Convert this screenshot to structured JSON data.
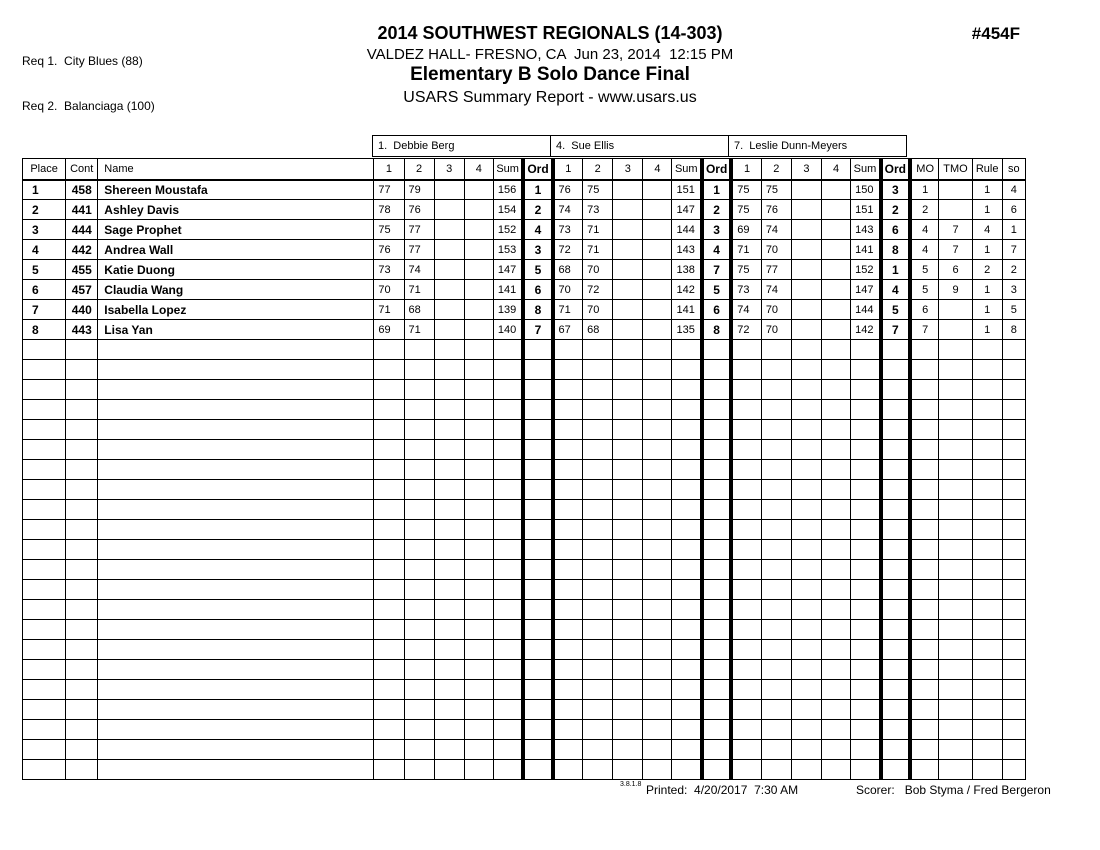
{
  "header": {
    "req1": "Req 1.  City Blues (88)",
    "req2": "Req 2.  Balanciaga (100)",
    "title": "2014 SOUTHWEST REGIONALS (14-303)",
    "venue": "VALDEZ HALL- FRESNO, CA  Jun 23, 2014  12:15 PM",
    "division": "Elementary B Solo Dance Final",
    "report_type": "USARS Summary Report - www.usars.us",
    "event_number": "#454F"
  },
  "table": {
    "left_headers": [
      "Place",
      "Cont",
      "Name"
    ],
    "judges": [
      {
        "name": "1.  Debbie Berg"
      },
      {
        "name": "4.  Sue Ellis"
      },
      {
        "name": "7.  Leslie Dunn-Meyers"
      }
    ],
    "judge_subheaders": [
      "1",
      "2",
      "3",
      "4",
      "Sum",
      "Ord"
    ],
    "right_headers": [
      "MO",
      "TMO",
      "Rule",
      "so"
    ],
    "rows": [
      {
        "place": "1",
        "cont": "458",
        "name": "Shereen Moustafa",
        "judges": [
          {
            "s1": "77",
            "s2": "79",
            "s3": "",
            "s4": "",
            "sum": "156",
            "ord": "1"
          },
          {
            "s1": "76",
            "s2": "75",
            "s3": "",
            "s4": "",
            "sum": "151",
            "ord": "1"
          },
          {
            "s1": "75",
            "s2": "75",
            "s3": "",
            "s4": "",
            "sum": "150",
            "ord": "3"
          }
        ],
        "mo": "1",
        "tmo": "",
        "rule": "1",
        "so": "4"
      },
      {
        "place": "2",
        "cont": "441",
        "name": "Ashley Davis",
        "judges": [
          {
            "s1": "78",
            "s2": "76",
            "s3": "",
            "s4": "",
            "sum": "154",
            "ord": "2"
          },
          {
            "s1": "74",
            "s2": "73",
            "s3": "",
            "s4": "",
            "sum": "147",
            "ord": "2"
          },
          {
            "s1": "75",
            "s2": "76",
            "s3": "",
            "s4": "",
            "sum": "151",
            "ord": "2"
          }
        ],
        "mo": "2",
        "tmo": "",
        "rule": "1",
        "so": "6"
      },
      {
        "place": "3",
        "cont": "444",
        "name": "Sage Prophet",
        "judges": [
          {
            "s1": "75",
            "s2": "77",
            "s3": "",
            "s4": "",
            "sum": "152",
            "ord": "4"
          },
          {
            "s1": "73",
            "s2": "71",
            "s3": "",
            "s4": "",
            "sum": "144",
            "ord": "3"
          },
          {
            "s1": "69",
            "s2": "74",
            "s3": "",
            "s4": "",
            "sum": "143",
            "ord": "6"
          }
        ],
        "mo": "4",
        "tmo": "7",
        "rule": "4",
        "so": "1"
      },
      {
        "place": "4",
        "cont": "442",
        "name": "Andrea Wall",
        "judges": [
          {
            "s1": "76",
            "s2": "77",
            "s3": "",
            "s4": "",
            "sum": "153",
            "ord": "3"
          },
          {
            "s1": "72",
            "s2": "71",
            "s3": "",
            "s4": "",
            "sum": "143",
            "ord": "4"
          },
          {
            "s1": "71",
            "s2": "70",
            "s3": "",
            "s4": "",
            "sum": "141",
            "ord": "8"
          }
        ],
        "mo": "4",
        "tmo": "7",
        "rule": "1",
        "so": "7"
      },
      {
        "place": "5",
        "cont": "455",
        "name": "Katie Duong",
        "judges": [
          {
            "s1": "73",
            "s2": "74",
            "s3": "",
            "s4": "",
            "sum": "147",
            "ord": "5"
          },
          {
            "s1": "68",
            "s2": "70",
            "s3": "",
            "s4": "",
            "sum": "138",
            "ord": "7"
          },
          {
            "s1": "75",
            "s2": "77",
            "s3": "",
            "s4": "",
            "sum": "152",
            "ord": "1"
          }
        ],
        "mo": "5",
        "tmo": "6",
        "rule": "2",
        "so": "2"
      },
      {
        "place": "6",
        "cont": "457",
        "name": "Claudia Wang",
        "judges": [
          {
            "s1": "70",
            "s2": "71",
            "s3": "",
            "s4": "",
            "sum": "141",
            "ord": "6"
          },
          {
            "s1": "70",
            "s2": "72",
            "s3": "",
            "s4": "",
            "sum": "142",
            "ord": "5"
          },
          {
            "s1": "73",
            "s2": "74",
            "s3": "",
            "s4": "",
            "sum": "147",
            "ord": "4"
          }
        ],
        "mo": "5",
        "tmo": "9",
        "rule": "1",
        "so": "3"
      },
      {
        "place": "7",
        "cont": "440",
        "name": "Isabella Lopez",
        "judges": [
          {
            "s1": "71",
            "s2": "68",
            "s3": "",
            "s4": "",
            "sum": "139",
            "ord": "8"
          },
          {
            "s1": "71",
            "s2": "70",
            "s3": "",
            "s4": "",
            "sum": "141",
            "ord": "6"
          },
          {
            "s1": "74",
            "s2": "70",
            "s3": "",
            "s4": "",
            "sum": "144",
            "ord": "5"
          }
        ],
        "mo": "6",
        "tmo": "",
        "rule": "1",
        "so": "5"
      },
      {
        "place": "8",
        "cont": "443",
        "name": "Lisa Yan",
        "judges": [
          {
            "s1": "69",
            "s2": "71",
            "s3": "",
            "s4": "",
            "sum": "140",
            "ord": "7"
          },
          {
            "s1": "67",
            "s2": "68",
            "s3": "",
            "s4": "",
            "sum": "135",
            "ord": "8"
          },
          {
            "s1": "72",
            "s2": "70",
            "s3": "",
            "s4": "",
            "sum": "142",
            "ord": "7"
          }
        ],
        "mo": "7",
        "tmo": "",
        "rule": "1",
        "so": "8"
      }
    ],
    "empty_row_count": 22
  },
  "footer": {
    "version": "3.8.1.8",
    "printed_line": "Printed:  4/20/2017  7:30 AM",
    "scorer_label": "Scorer:   ",
    "scorer_value": "Bob Styma / Fred Bergeron"
  }
}
